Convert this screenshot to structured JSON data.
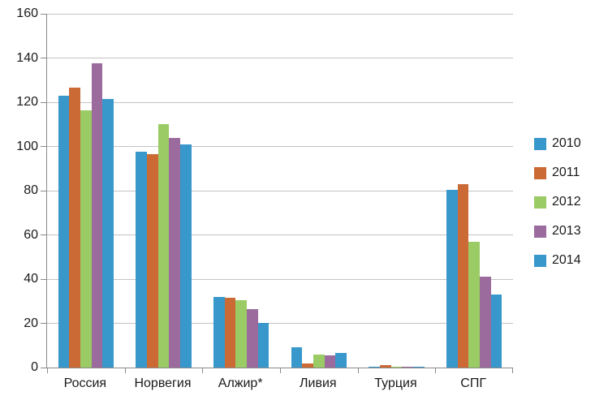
{
  "chart_data": {
    "type": "bar",
    "title": "",
    "xlabel": "",
    "ylabel": "",
    "categories": [
      "Россия",
      "Норвегия",
      "Алжир*",
      "Ливия",
      "Турция",
      "СПГ"
    ],
    "series": [
      {
        "name": "2010",
        "color": "#3898cb",
        "values": [
          123,
          97.5,
          32,
          9,
          0.5,
          80.5
        ]
      },
      {
        "name": "2011",
        "color": "#cb6a35",
        "values": [
          126.5,
          96.5,
          31.5,
          2,
          1,
          83
        ]
      },
      {
        "name": "2012",
        "color": "#9acb64",
        "values": [
          116.5,
          110,
          30.5,
          6,
          0.5,
          57
        ]
      },
      {
        "name": "2013",
        "color": "#9c6b9e",
        "values": [
          137.5,
          104,
          26.5,
          5.5,
          0.5,
          41
        ]
      },
      {
        "name": "2014",
        "color": "#3898cb",
        "values": [
          121.5,
          101,
          20,
          6.5,
          0.5,
          33
        ]
      }
    ],
    "ylim": [
      0,
      160
    ],
    "ytick_step": 20,
    "ytick_labels": [
      "0",
      "20",
      "40",
      "60",
      "80",
      "100",
      "120",
      "140",
      "160"
    ],
    "grid": true,
    "legend_position": "right",
    "legend_entries": [
      "2010",
      "2011",
      "2012",
      "2013",
      "2014"
    ],
    "colors": {
      "gridline": "#c3c3c3",
      "axis": "#898989",
      "text": "#1a1a1a",
      "background": "#ffffff"
    }
  }
}
